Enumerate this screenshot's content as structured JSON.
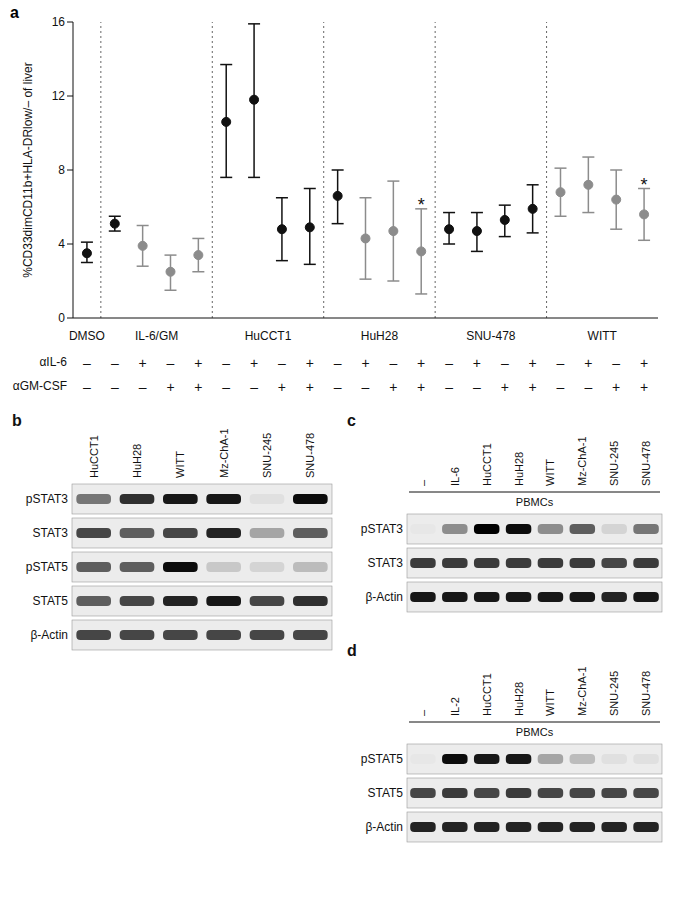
{
  "chart_data": {
    "type": "scatter",
    "panel": "a",
    "ylabel": "%CD33dimCD11b+HLA-DRlow/– of liver",
    "ylim": [
      0,
      16
    ],
    "yticks": [
      0,
      4,
      8,
      12,
      16
    ],
    "grid": false,
    "row_labels": [
      "αIL-6",
      "αGM-CSF"
    ],
    "groups": [
      {
        "name": "DMSO",
        "values": [
          3.5
        ],
        "error_low": [
          3.0
        ],
        "error_high": [
          4.1
        ],
        "colors": [
          "#111111"
        ],
        "alpha_il6": [
          "–"
        ],
        "alpha_gmcsf": [
          "–"
        ],
        "annotations": [
          null
        ]
      },
      {
        "name": "IL-6/GM",
        "values": [
          5.1,
          3.9,
          2.5,
          3.4
        ],
        "error_low": [
          4.7,
          2.8,
          1.5,
          2.5
        ],
        "error_high": [
          5.5,
          5.0,
          3.4,
          4.3
        ],
        "colors": [
          "#111111",
          "#8c8c8c",
          "#8c8c8c",
          "#8c8c8c"
        ],
        "alpha_il6": [
          "–",
          "+",
          "–",
          "+"
        ],
        "alpha_gmcsf": [
          "–",
          "–",
          "+",
          "+"
        ],
        "annotations": [
          null,
          null,
          null,
          null
        ]
      },
      {
        "name": "HuCCT1",
        "values": [
          10.6,
          11.8,
          4.8,
          4.9
        ],
        "error_low": [
          7.6,
          7.6,
          3.1,
          2.9
        ],
        "error_high": [
          13.7,
          15.9,
          6.5,
          7.0
        ],
        "colors": [
          "#111111",
          "#111111",
          "#111111",
          "#111111"
        ],
        "alpha_il6": [
          "–",
          "+",
          "–",
          "+"
        ],
        "alpha_gmcsf": [
          "–",
          "–",
          "+",
          "+"
        ],
        "annotations": [
          null,
          null,
          null,
          null
        ]
      },
      {
        "name": "HuH28",
        "values": [
          6.6,
          4.3,
          4.7,
          3.6
        ],
        "error_low": [
          5.1,
          2.1,
          2.0,
          1.3
        ],
        "error_high": [
          8.0,
          6.5,
          7.4,
          5.9
        ],
        "colors": [
          "#111111",
          "#8c8c8c",
          "#8c8c8c",
          "#8c8c8c"
        ],
        "alpha_il6": [
          "–",
          "+",
          "–",
          "+"
        ],
        "alpha_gmcsf": [
          "–",
          "–",
          "+",
          "+"
        ],
        "annotations": [
          null,
          null,
          null,
          "*"
        ]
      },
      {
        "name": "SNU-478",
        "values": [
          4.8,
          4.7,
          5.3,
          5.9
        ],
        "error_low": [
          4.0,
          3.6,
          4.4,
          4.6
        ],
        "error_high": [
          5.7,
          5.7,
          6.1,
          7.2
        ],
        "colors": [
          "#111111",
          "#111111",
          "#111111",
          "#111111"
        ],
        "alpha_il6": [
          "–",
          "+",
          "–",
          "+"
        ],
        "alpha_gmcsf": [
          "–",
          "–",
          "+",
          "+"
        ],
        "annotations": [
          null,
          null,
          null,
          null
        ]
      },
      {
        "name": "WITT",
        "values": [
          6.8,
          7.2,
          6.4,
          5.6
        ],
        "error_low": [
          5.5,
          5.7,
          4.8,
          4.2
        ],
        "error_high": [
          8.1,
          8.7,
          8.0,
          7.0
        ],
        "colors": [
          "#8c8c8c",
          "#8c8c8c",
          "#8c8c8c",
          "#8c8c8c"
        ],
        "alpha_il6": [
          "–",
          "+",
          "–",
          "+"
        ],
        "alpha_gmcsf": [
          "–",
          "–",
          "+",
          "+"
        ],
        "annotations": [
          null,
          null,
          null,
          "*"
        ]
      }
    ]
  },
  "blots": [
    {
      "panel": "b",
      "lanes": [
        "HuCCT1",
        "HuH28",
        "WITT",
        "Mz-ChA-1",
        "SNU-245",
        "SNU-478"
      ],
      "rows": [
        {
          "name": "pSTAT3",
          "intensity": [
            0.5,
            0.8,
            0.9,
            0.9,
            0.05,
            0.95
          ]
        },
        {
          "name": "STAT3",
          "intensity": [
            0.7,
            0.6,
            0.7,
            0.85,
            0.3,
            0.6
          ]
        },
        {
          "name": "pSTAT5",
          "intensity": [
            0.6,
            0.6,
            0.95,
            0.15,
            0.1,
            0.2
          ]
        },
        {
          "name": "STAT5",
          "intensity": [
            0.6,
            0.7,
            0.85,
            0.9,
            0.7,
            0.8
          ]
        },
        {
          "name": "β-Actin",
          "intensity": [
            0.7,
            0.7,
            0.7,
            0.7,
            0.7,
            0.7
          ]
        }
      ]
    },
    {
      "panel": "c",
      "group_label": "PBMCs",
      "lanes": [
        "–",
        "IL-6",
        "HuCCT1",
        "HuH28",
        "WITT",
        "Mz-ChA-1",
        "SNU-245",
        "SNU-478"
      ],
      "rows": [
        {
          "name": "pSTAT3",
          "intensity": [
            0.02,
            0.4,
            1.0,
            0.95,
            0.4,
            0.6,
            0.1,
            0.5
          ]
        },
        {
          "name": "STAT3",
          "intensity": [
            0.75,
            0.75,
            0.75,
            0.75,
            0.75,
            0.75,
            0.7,
            0.75
          ]
        },
        {
          "name": "β-Actin",
          "intensity": [
            0.9,
            0.9,
            0.9,
            0.9,
            0.9,
            0.9,
            0.85,
            0.9
          ]
        }
      ]
    },
    {
      "panel": "d",
      "group_label": "PBMCs",
      "lanes": [
        "–",
        "IL-2",
        "HuCCT1",
        "HuH28",
        "WITT",
        "Mz-ChA-1",
        "SNU-245",
        "SNU-478"
      ],
      "rows": [
        {
          "name": "pSTAT5",
          "intensity": [
            0.02,
            0.95,
            0.9,
            0.9,
            0.3,
            0.2,
            0.05,
            0.05
          ]
        },
        {
          "name": "STAT5",
          "intensity": [
            0.7,
            0.75,
            0.7,
            0.75,
            0.7,
            0.7,
            0.7,
            0.7
          ]
        },
        {
          "name": "β-Actin",
          "intensity": [
            0.85,
            0.85,
            0.85,
            0.85,
            0.85,
            0.85,
            0.85,
            0.85
          ]
        }
      ]
    }
  ]
}
